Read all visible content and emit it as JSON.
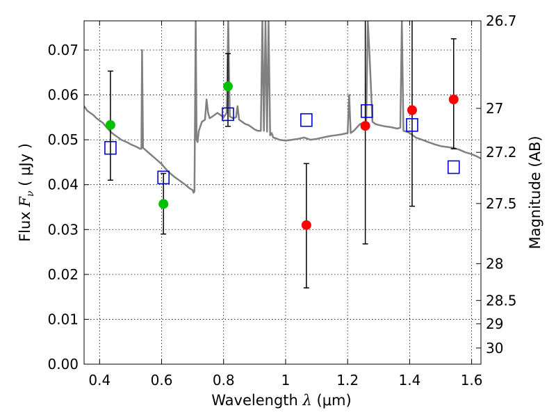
{
  "chart_data": {
    "type": "scatter",
    "xlabel": "Wavelength  λ (μm)",
    "ylabel": "Flux  F_ν  ( μJy )",
    "ylabel_parts": {
      "prefix": "Flux  ",
      "symbol": "F",
      "subscript": "ν",
      "suffix": "  ( μJy )"
    },
    "xlabel_parts": {
      "prefix": "Wavelength  ",
      "symbol": "λ",
      "suffix": " (μm)"
    },
    "right_ylabel": "Magnitude (AB)",
    "xlim": [
      0.35,
      1.63
    ],
    "ylim": [
      0.0,
      0.0765
    ],
    "x_ticks": [
      0.4,
      0.6,
      0.8,
      1.0,
      1.2,
      1.4,
      1.6
    ],
    "x_tick_labels": [
      "0.4",
      "0.6",
      "0.8",
      "1",
      "1.2",
      "1.4",
      "1.6"
    ],
    "y_ticks": [
      0.0,
      0.01,
      0.02,
      0.03,
      0.04,
      0.05,
      0.06,
      0.07
    ],
    "y_tick_labels": [
      "0.00",
      "0.01",
      "0.02",
      "0.03",
      "0.04",
      "0.05",
      "0.06",
      "0.07"
    ],
    "right_ticks": [
      {
        "label": "26.7",
        "flux": 0.0765
      },
      {
        "label": "27",
        "flux": 0.057
      },
      {
        "label": "27.2",
        "flux": 0.0472
      },
      {
        "label": "27.5",
        "flux": 0.0358
      },
      {
        "label": "28",
        "flux": 0.0224
      },
      {
        "label": "28.5",
        "flux": 0.0142
      },
      {
        "label": "29",
        "flux": 0.009
      },
      {
        "label": "30",
        "flux": 0.0036
      }
    ],
    "grid": true,
    "series": [
      {
        "kind": "observed_green",
        "color": "#00c000",
        "marker": "circle",
        "x": [
          0.435,
          0.606,
          0.814
        ],
        "y": [
          0.0533,
          0.0357,
          0.0619
        ],
        "y_err_low": [
          0.041,
          0.029,
          0.053
        ],
        "y_err_high": [
          0.0653,
          0.0425,
          0.0692
        ]
      },
      {
        "kind": "observed_red",
        "color": "#ff0000",
        "marker": "circle",
        "x": [
          1.067,
          1.257,
          1.408,
          1.542
        ],
        "y": [
          0.031,
          0.0531,
          0.0566,
          0.059
        ],
        "y_err_low": [
          0.017,
          0.0268,
          0.0352,
          0.048
        ],
        "y_err_high": [
          0.0447,
          0.0765,
          0.0765,
          0.0725
        ]
      },
      {
        "kind": "model_photometry",
        "color": "#0000cc",
        "marker": "open-square",
        "x": [
          0.435,
          0.606,
          0.814,
          1.067,
          1.262,
          1.408,
          1.542
        ],
        "y": [
          0.0482,
          0.0416,
          0.0557,
          0.0544,
          0.0564,
          0.0533,
          0.0439
        ]
      },
      {
        "kind": "model_spectrum",
        "color": "#808080",
        "marker": "line",
        "x": [
          0.35,
          0.36,
          0.37,
          0.38,
          0.39,
          0.4,
          0.41,
          0.42,
          0.43,
          0.44,
          0.45,
          0.46,
          0.47,
          0.48,
          0.49,
          0.5,
          0.51,
          0.52,
          0.53,
          0.535,
          0.537,
          0.54,
          0.55,
          0.56,
          0.58,
          0.6,
          0.62,
          0.64,
          0.66,
          0.68,
          0.69,
          0.7,
          0.703,
          0.706,
          0.71,
          0.713,
          0.716,
          0.72,
          0.73,
          0.74,
          0.745,
          0.75,
          0.755,
          0.76,
          0.77,
          0.78,
          0.79,
          0.8,
          0.81,
          0.815,
          0.82,
          0.83,
          0.84,
          0.845,
          0.85,
          0.86,
          0.87,
          0.88,
          0.89,
          0.9,
          0.91,
          0.92,
          0.925,
          0.93,
          0.935,
          0.94,
          0.945,
          0.95,
          0.955,
          0.96,
          0.97,
          0.98,
          1.0,
          1.02,
          1.04,
          1.06,
          1.08,
          1.1,
          1.12,
          1.14,
          1.16,
          1.18,
          1.2,
          1.205,
          1.21,
          1.22,
          1.24,
          1.26,
          1.265,
          1.27,
          1.28,
          1.29,
          1.3,
          1.32,
          1.34,
          1.36,
          1.37,
          1.375,
          1.38,
          1.39,
          1.4,
          1.42,
          1.44,
          1.46,
          1.48,
          1.5,
          1.52,
          1.54,
          1.56,
          1.58,
          1.6,
          1.62,
          1.63
        ],
        "y": [
          0.0575,
          0.0565,
          0.056,
          0.0555,
          0.0548,
          0.0543,
          0.0538,
          0.053,
          0.0522,
          0.0515,
          0.051,
          0.0505,
          0.05,
          0.0497,
          0.0494,
          0.049,
          0.0487,
          0.0484,
          0.048,
          0.048,
          0.07,
          0.0482,
          0.0476,
          0.047,
          0.0458,
          0.0446,
          0.043,
          0.0418,
          0.0408,
          0.0398,
          0.0392,
          0.0388,
          0.0382,
          0.0385,
          0.0765,
          0.05,
          0.0495,
          0.052,
          0.054,
          0.0545,
          0.059,
          0.056,
          0.0548,
          0.055,
          0.0555,
          0.056,
          0.0555,
          0.055,
          0.056,
          0.0765,
          0.0552,
          0.0548,
          0.055,
          0.0575,
          0.0545,
          0.054,
          0.0535,
          0.0533,
          0.0528,
          0.0523,
          0.052,
          0.052,
          0.0765,
          0.052,
          0.0765,
          0.0518,
          0.0765,
          0.051,
          0.0515,
          0.0505,
          0.0503,
          0.05,
          0.0498,
          0.05,
          0.0502,
          0.0505,
          0.05,
          0.0502,
          0.0505,
          0.0508,
          0.051,
          0.0512,
          0.0515,
          0.06,
          0.0515,
          0.052,
          0.0535,
          0.054,
          0.0765,
          0.07,
          0.054,
          0.0535,
          0.0533,
          0.053,
          0.0528,
          0.0525,
          0.0527,
          0.0765,
          0.052,
          0.0518,
          0.0515,
          0.0505,
          0.05,
          0.0495,
          0.049,
          0.0486,
          0.0484,
          0.0482,
          0.0478,
          0.0472,
          0.0468,
          0.0462,
          0.0458
        ]
      }
    ]
  }
}
